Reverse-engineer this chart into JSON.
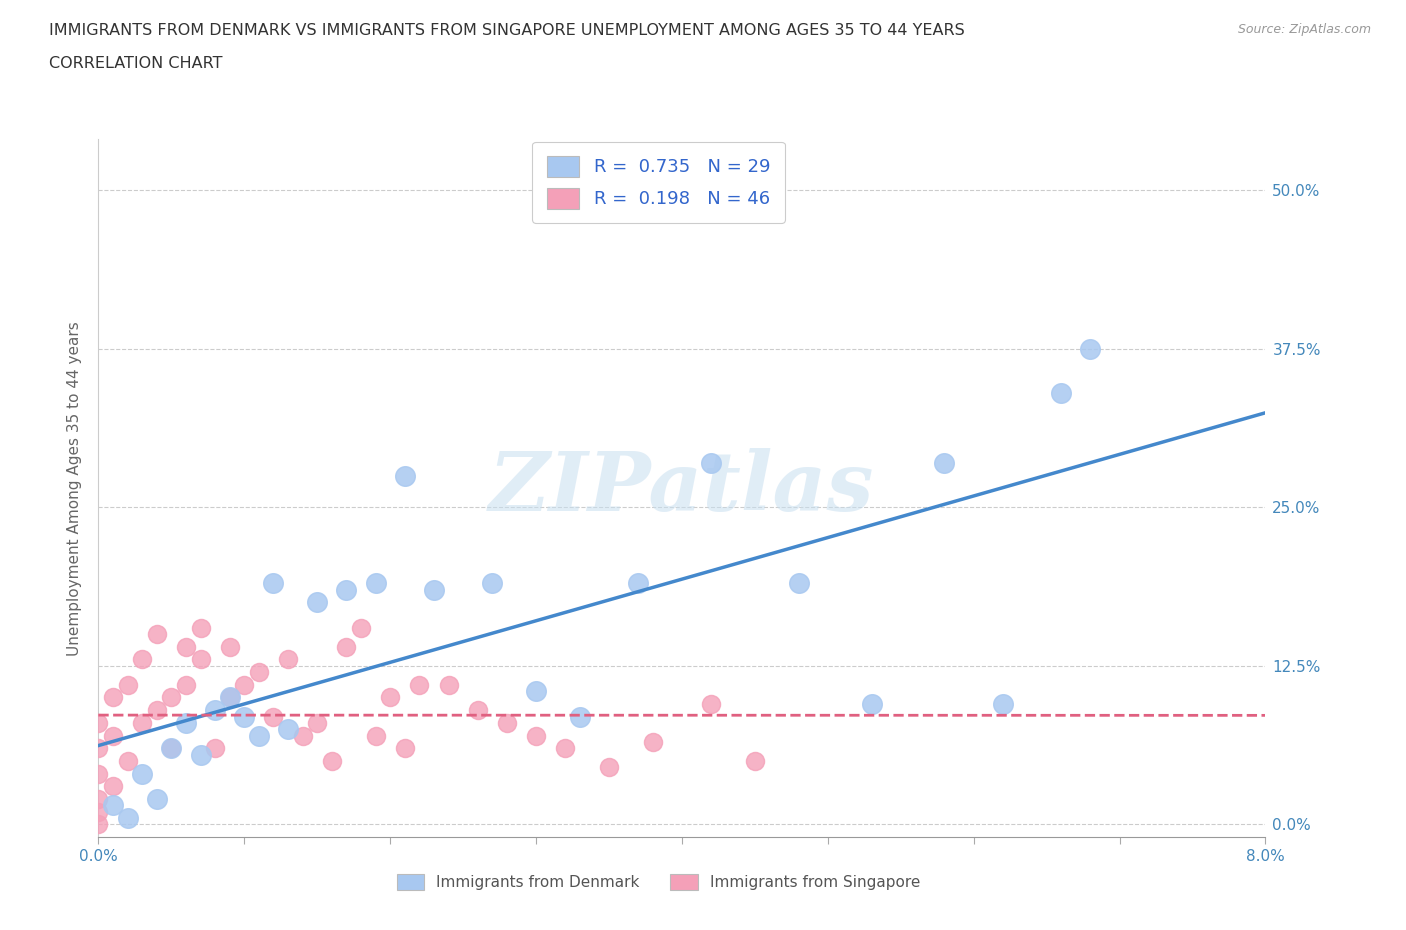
{
  "title_line1": "IMMIGRANTS FROM DENMARK VS IMMIGRANTS FROM SINGAPORE UNEMPLOYMENT AMONG AGES 35 TO 44 YEARS",
  "title_line2": "CORRELATION CHART",
  "source_text": "Source: ZipAtlas.com",
  "ylabel": "Unemployment Among Ages 35 to 44 years",
  "xlim": [
    0.0,
    0.08
  ],
  "ylim": [
    -0.01,
    0.54
  ],
  "yticks": [
    0.0,
    0.125,
    0.25,
    0.375,
    0.5
  ],
  "ytick_labels": [
    "0.0%",
    "12.5%",
    "25.0%",
    "37.5%",
    "50.0%"
  ],
  "xticks": [
    0.0,
    0.01,
    0.02,
    0.03,
    0.04,
    0.05,
    0.06,
    0.07,
    0.08
  ],
  "xtick_labels": [
    "0.0%",
    "",
    "",
    "",
    "",
    "",
    "",
    "",
    "8.0%"
  ],
  "denmark_color": "#a8c8f0",
  "singapore_color": "#f4a0b8",
  "denmark_line_color": "#4488cc",
  "singapore_line_color": "#e06080",
  "denmark_R": 0.735,
  "denmark_N": 29,
  "singapore_R": 0.198,
  "singapore_N": 46,
  "watermark": "ZIPatlas",
  "denmark_x": [
    0.001,
    0.002,
    0.003,
    0.004,
    0.005,
    0.006,
    0.007,
    0.008,
    0.009,
    0.01,
    0.011,
    0.012,
    0.013,
    0.015,
    0.017,
    0.019,
    0.021,
    0.023,
    0.027,
    0.03,
    0.033,
    0.037,
    0.042,
    0.048,
    0.053,
    0.058,
    0.062,
    0.066,
    0.068
  ],
  "denmark_y": [
    0.015,
    0.005,
    0.04,
    0.02,
    0.06,
    0.08,
    0.055,
    0.09,
    0.1,
    0.085,
    0.07,
    0.19,
    0.075,
    0.175,
    0.185,
    0.19,
    0.275,
    0.185,
    0.19,
    0.105,
    0.085,
    0.19,
    0.285,
    0.19,
    0.095,
    0.285,
    0.095,
    0.34,
    0.375
  ],
  "singapore_x": [
    0.0,
    0.0,
    0.0,
    0.0,
    0.0,
    0.0,
    0.001,
    0.001,
    0.001,
    0.002,
    0.002,
    0.003,
    0.003,
    0.004,
    0.004,
    0.005,
    0.005,
    0.006,
    0.006,
    0.007,
    0.007,
    0.008,
    0.009,
    0.009,
    0.01,
    0.011,
    0.012,
    0.013,
    0.014,
    0.015,
    0.016,
    0.017,
    0.018,
    0.019,
    0.02,
    0.021,
    0.022,
    0.024,
    0.026,
    0.028,
    0.03,
    0.032,
    0.035,
    0.038,
    0.042,
    0.045
  ],
  "singapore_y": [
    0.0,
    0.01,
    0.02,
    0.04,
    0.06,
    0.08,
    0.03,
    0.07,
    0.1,
    0.05,
    0.11,
    0.08,
    0.13,
    0.09,
    0.15,
    0.06,
    0.1,
    0.11,
    0.14,
    0.13,
    0.155,
    0.06,
    0.1,
    0.14,
    0.11,
    0.12,
    0.085,
    0.13,
    0.07,
    0.08,
    0.05,
    0.14,
    0.155,
    0.07,
    0.1,
    0.06,
    0.11,
    0.11,
    0.09,
    0.08,
    0.07,
    0.06,
    0.045,
    0.065,
    0.095,
    0.05
  ]
}
